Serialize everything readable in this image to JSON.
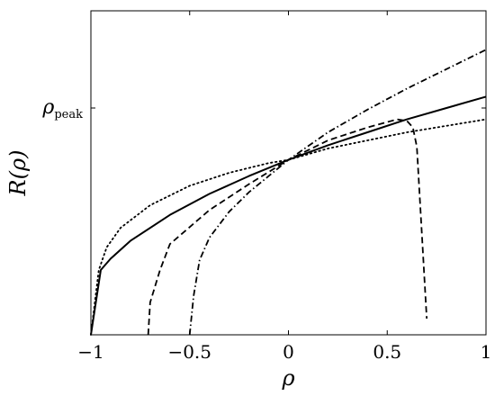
{
  "chart_data": {
    "type": "line",
    "xlabel": "ρ",
    "ylabel": "R(ρ)",
    "xlim": [
      -1,
      1
    ],
    "ylim": [
      0,
      1
    ],
    "x_ticks": [
      {
        "value": -1,
        "label": "−1"
      },
      {
        "value": -0.5,
        "label": "−0.5"
      },
      {
        "value": 0,
        "label": "0"
      },
      {
        "value": 0.5,
        "label": "0.5"
      },
      {
        "value": 1,
        "label": "1"
      }
    ],
    "y_ticks": [
      {
        "value": 0.7,
        "symbol": "ρ",
        "subscript": "peak"
      }
    ],
    "grid": false,
    "legend": "none",
    "series": [
      {
        "style": "solid",
        "x": [
          -1,
          -0.95,
          -0.9,
          -0.8,
          -0.6,
          -0.4,
          -0.2,
          0,
          0.2,
          0.4,
          0.6,
          0.8,
          1
        ],
        "y": [
          0,
          0.2,
          0.235,
          0.29,
          0.37,
          0.435,
          0.49,
          0.54,
          0.585,
          0.625,
          0.665,
          0.7,
          0.735
        ]
      },
      {
        "style": "dotted",
        "x": [
          -1,
          -0.96,
          -0.92,
          -0.85,
          -0.7,
          -0.5,
          -0.3,
          -0.1,
          0,
          0.2,
          0.4,
          0.6,
          0.8,
          1
        ],
        "y": [
          0,
          0.2,
          0.27,
          0.33,
          0.4,
          0.46,
          0.5,
          0.53,
          0.54,
          0.575,
          0.6,
          0.625,
          0.645,
          0.665
        ]
      },
      {
        "style": "dashed",
        "x": [
          -0.71,
          -0.7,
          -0.65,
          -0.6,
          -0.4,
          -0.2,
          0,
          0.2,
          0.4,
          0.55,
          0.6,
          0.63,
          0.65,
          0.7
        ],
        "y": [
          0,
          0.1,
          0.2,
          0.28,
          0.385,
          0.465,
          0.54,
          0.6,
          0.64,
          0.665,
          0.66,
          0.64,
          0.58,
          0.05
        ]
      },
      {
        "style": "dashdot",
        "x": [
          -0.5,
          -0.48,
          -0.45,
          -0.4,
          -0.3,
          -0.2,
          -0.1,
          0,
          0.2,
          0.4,
          0.6,
          0.8,
          1
        ],
        "y": [
          0,
          0.12,
          0.23,
          0.3,
          0.38,
          0.44,
          0.49,
          0.54,
          0.625,
          0.695,
          0.76,
          0.82,
          0.88
        ]
      }
    ]
  }
}
